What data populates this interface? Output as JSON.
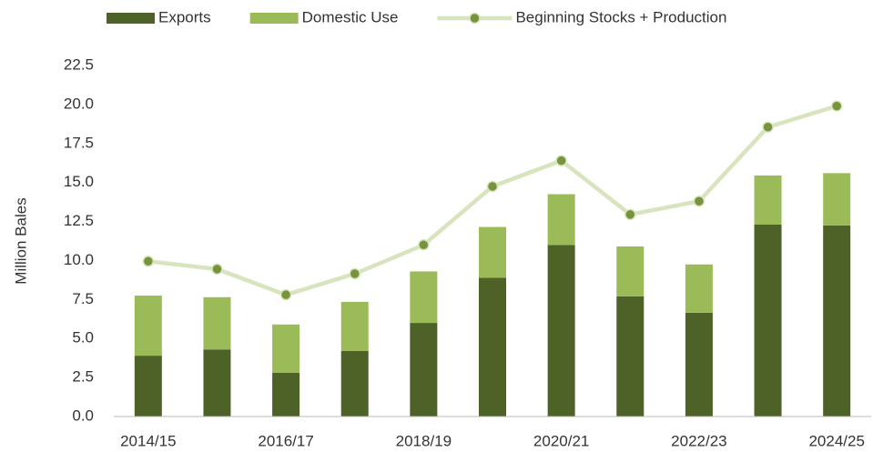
{
  "chart_data": {
    "type": "bar",
    "stacked": true,
    "y_label": "Million Bales",
    "categories": [
      "2014/15",
      null,
      "2016/17",
      null,
      "2018/19",
      null,
      "2020/21",
      null,
      "2022/23",
      null,
      "2024/25"
    ],
    "series": [
      {
        "name": "Exports",
        "type": "bar",
        "color": "#4e6228",
        "values": [
          3.9,
          4.3,
          2.8,
          4.2,
          6.0,
          8.9,
          11.0,
          7.7,
          6.65,
          12.3,
          12.25
        ]
      },
      {
        "name": "Domestic Use",
        "type": "bar",
        "color": "#9bbb59",
        "values": [
          3.85,
          3.35,
          3.1,
          3.15,
          3.3,
          3.25,
          3.25,
          3.2,
          3.1,
          3.15,
          3.35
        ]
      },
      {
        "name": "Beginning Stocks + Production",
        "type": "line",
        "color": "#d7e4bd",
        "marker_color": "#77933c",
        "values": [
          9.95,
          9.45,
          7.8,
          9.15,
          11.0,
          14.75,
          16.4,
          12.95,
          13.8,
          18.55,
          19.9
        ]
      }
    ],
    "ylim": [
      0,
      22.5
    ],
    "yticks": [
      {
        "value": 0,
        "label": "0.0"
      },
      2.5,
      {
        "value": 5,
        "label": "5.0"
      },
      7.5,
      {
        "value": 10,
        "label": "10.0"
      },
      12.5,
      {
        "value": 15,
        "label": "15.0"
      },
      17.5,
      {
        "value": 20,
        "label": "20.0"
      },
      22.5
    ],
    "grid": false,
    "legend": "top"
  }
}
